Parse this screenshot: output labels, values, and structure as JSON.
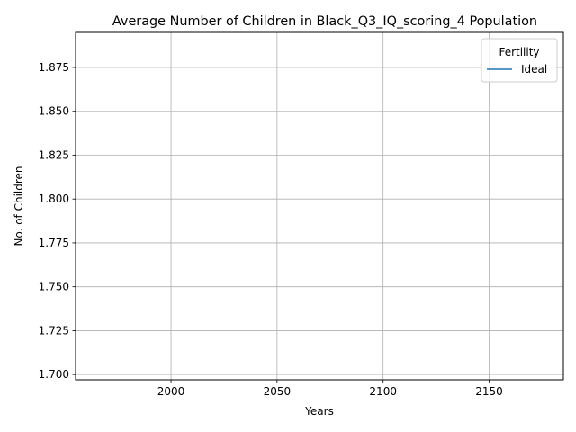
{
  "chart_data": {
    "type": "line",
    "title": "Average Number of Children in Black_Q3_IQ_scoring_4 Population",
    "xlabel": "Years",
    "ylabel": "No. of Children",
    "xlim": [
      1955,
      2185
    ],
    "ylim": [
      1.697,
      1.895
    ],
    "x_ticks": [
      2000,
      2050,
      2100,
      2150
    ],
    "x_tick_labels": [
      "2000",
      "2050",
      "2100",
      "2150"
    ],
    "y_ticks": [
      1.7,
      1.725,
      1.75,
      1.775,
      1.8,
      1.825,
      1.85,
      1.875
    ],
    "y_tick_labels": [
      "1.700",
      "1.725",
      "1.750",
      "1.775",
      "1.800",
      "1.825",
      "1.850",
      "1.875"
    ],
    "grid": true,
    "legend": {
      "title": "Fertility",
      "placement": "top-right",
      "entries": [
        {
          "label": "Ideal",
          "color": "#1f77b4"
        }
      ]
    },
    "series": [
      {
        "name": "Ideal",
        "color": "#1f77b4",
        "x": [],
        "y": []
      }
    ]
  }
}
